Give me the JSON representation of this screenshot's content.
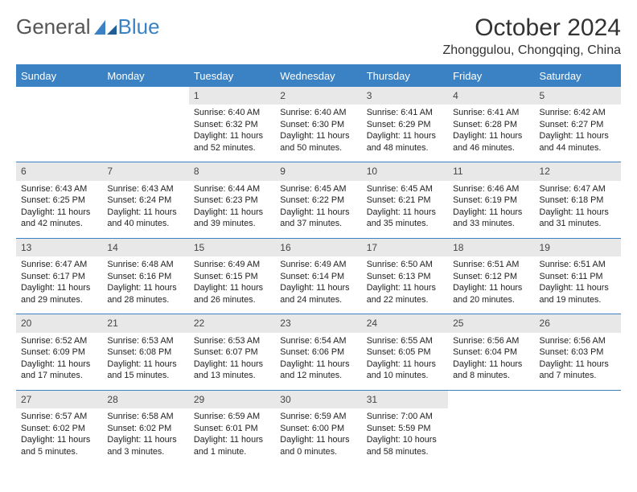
{
  "brand": {
    "part1": "General",
    "part2": "Blue"
  },
  "title": "October 2024",
  "location": "Zhonggulou, Chongqing, China",
  "colors": {
    "accent": "#3b82c4",
    "header_bg": "#3b82c4",
    "header_text": "#ffffff",
    "daynum_bg": "#e8e8e8",
    "text": "#333333",
    "background": "#ffffff"
  },
  "font": {
    "title_size_pt": 22,
    "location_size_pt": 12,
    "cell_size_pt": 8
  },
  "calendar": {
    "type": "table",
    "day_headers": [
      "Sunday",
      "Monday",
      "Tuesday",
      "Wednesday",
      "Thursday",
      "Friday",
      "Saturday"
    ],
    "weeks": [
      [
        {
          "n": "",
          "lines": []
        },
        {
          "n": "",
          "lines": []
        },
        {
          "n": "1",
          "lines": [
            "Sunrise: 6:40 AM",
            "Sunset: 6:32 PM",
            "Daylight: 11 hours and 52 minutes."
          ]
        },
        {
          "n": "2",
          "lines": [
            "Sunrise: 6:40 AM",
            "Sunset: 6:30 PM",
            "Daylight: 11 hours and 50 minutes."
          ]
        },
        {
          "n": "3",
          "lines": [
            "Sunrise: 6:41 AM",
            "Sunset: 6:29 PM",
            "Daylight: 11 hours and 48 minutes."
          ]
        },
        {
          "n": "4",
          "lines": [
            "Sunrise: 6:41 AM",
            "Sunset: 6:28 PM",
            "Daylight: 11 hours and 46 minutes."
          ]
        },
        {
          "n": "5",
          "lines": [
            "Sunrise: 6:42 AM",
            "Sunset: 6:27 PM",
            "Daylight: 11 hours and 44 minutes."
          ]
        }
      ],
      [
        {
          "n": "6",
          "lines": [
            "Sunrise: 6:43 AM",
            "Sunset: 6:25 PM",
            "Daylight: 11 hours and 42 minutes."
          ]
        },
        {
          "n": "7",
          "lines": [
            "Sunrise: 6:43 AM",
            "Sunset: 6:24 PM",
            "Daylight: 11 hours and 40 minutes."
          ]
        },
        {
          "n": "8",
          "lines": [
            "Sunrise: 6:44 AM",
            "Sunset: 6:23 PM",
            "Daylight: 11 hours and 39 minutes."
          ]
        },
        {
          "n": "9",
          "lines": [
            "Sunrise: 6:45 AM",
            "Sunset: 6:22 PM",
            "Daylight: 11 hours and 37 minutes."
          ]
        },
        {
          "n": "10",
          "lines": [
            "Sunrise: 6:45 AM",
            "Sunset: 6:21 PM",
            "Daylight: 11 hours and 35 minutes."
          ]
        },
        {
          "n": "11",
          "lines": [
            "Sunrise: 6:46 AM",
            "Sunset: 6:19 PM",
            "Daylight: 11 hours and 33 minutes."
          ]
        },
        {
          "n": "12",
          "lines": [
            "Sunrise: 6:47 AM",
            "Sunset: 6:18 PM",
            "Daylight: 11 hours and 31 minutes."
          ]
        }
      ],
      [
        {
          "n": "13",
          "lines": [
            "Sunrise: 6:47 AM",
            "Sunset: 6:17 PM",
            "Daylight: 11 hours and 29 minutes."
          ]
        },
        {
          "n": "14",
          "lines": [
            "Sunrise: 6:48 AM",
            "Sunset: 6:16 PM",
            "Daylight: 11 hours and 28 minutes."
          ]
        },
        {
          "n": "15",
          "lines": [
            "Sunrise: 6:49 AM",
            "Sunset: 6:15 PM",
            "Daylight: 11 hours and 26 minutes."
          ]
        },
        {
          "n": "16",
          "lines": [
            "Sunrise: 6:49 AM",
            "Sunset: 6:14 PM",
            "Daylight: 11 hours and 24 minutes."
          ]
        },
        {
          "n": "17",
          "lines": [
            "Sunrise: 6:50 AM",
            "Sunset: 6:13 PM",
            "Daylight: 11 hours and 22 minutes."
          ]
        },
        {
          "n": "18",
          "lines": [
            "Sunrise: 6:51 AM",
            "Sunset: 6:12 PM",
            "Daylight: 11 hours and 20 minutes."
          ]
        },
        {
          "n": "19",
          "lines": [
            "Sunrise: 6:51 AM",
            "Sunset: 6:11 PM",
            "Daylight: 11 hours and 19 minutes."
          ]
        }
      ],
      [
        {
          "n": "20",
          "lines": [
            "Sunrise: 6:52 AM",
            "Sunset: 6:09 PM",
            "Daylight: 11 hours and 17 minutes."
          ]
        },
        {
          "n": "21",
          "lines": [
            "Sunrise: 6:53 AM",
            "Sunset: 6:08 PM",
            "Daylight: 11 hours and 15 minutes."
          ]
        },
        {
          "n": "22",
          "lines": [
            "Sunrise: 6:53 AM",
            "Sunset: 6:07 PM",
            "Daylight: 11 hours and 13 minutes."
          ]
        },
        {
          "n": "23",
          "lines": [
            "Sunrise: 6:54 AM",
            "Sunset: 6:06 PM",
            "Daylight: 11 hours and 12 minutes."
          ]
        },
        {
          "n": "24",
          "lines": [
            "Sunrise: 6:55 AM",
            "Sunset: 6:05 PM",
            "Daylight: 11 hours and 10 minutes."
          ]
        },
        {
          "n": "25",
          "lines": [
            "Sunrise: 6:56 AM",
            "Sunset: 6:04 PM",
            "Daylight: 11 hours and 8 minutes."
          ]
        },
        {
          "n": "26",
          "lines": [
            "Sunrise: 6:56 AM",
            "Sunset: 6:03 PM",
            "Daylight: 11 hours and 7 minutes."
          ]
        }
      ],
      [
        {
          "n": "27",
          "lines": [
            "Sunrise: 6:57 AM",
            "Sunset: 6:02 PM",
            "Daylight: 11 hours and 5 minutes."
          ]
        },
        {
          "n": "28",
          "lines": [
            "Sunrise: 6:58 AM",
            "Sunset: 6:02 PM",
            "Daylight: 11 hours and 3 minutes."
          ]
        },
        {
          "n": "29",
          "lines": [
            "Sunrise: 6:59 AM",
            "Sunset: 6:01 PM",
            "Daylight: 11 hours and 1 minute."
          ]
        },
        {
          "n": "30",
          "lines": [
            "Sunrise: 6:59 AM",
            "Sunset: 6:00 PM",
            "Daylight: 11 hours and 0 minutes."
          ]
        },
        {
          "n": "31",
          "lines": [
            "Sunrise: 7:00 AM",
            "Sunset: 5:59 PM",
            "Daylight: 10 hours and 58 minutes."
          ]
        },
        {
          "n": "",
          "lines": []
        },
        {
          "n": "",
          "lines": []
        }
      ]
    ]
  }
}
